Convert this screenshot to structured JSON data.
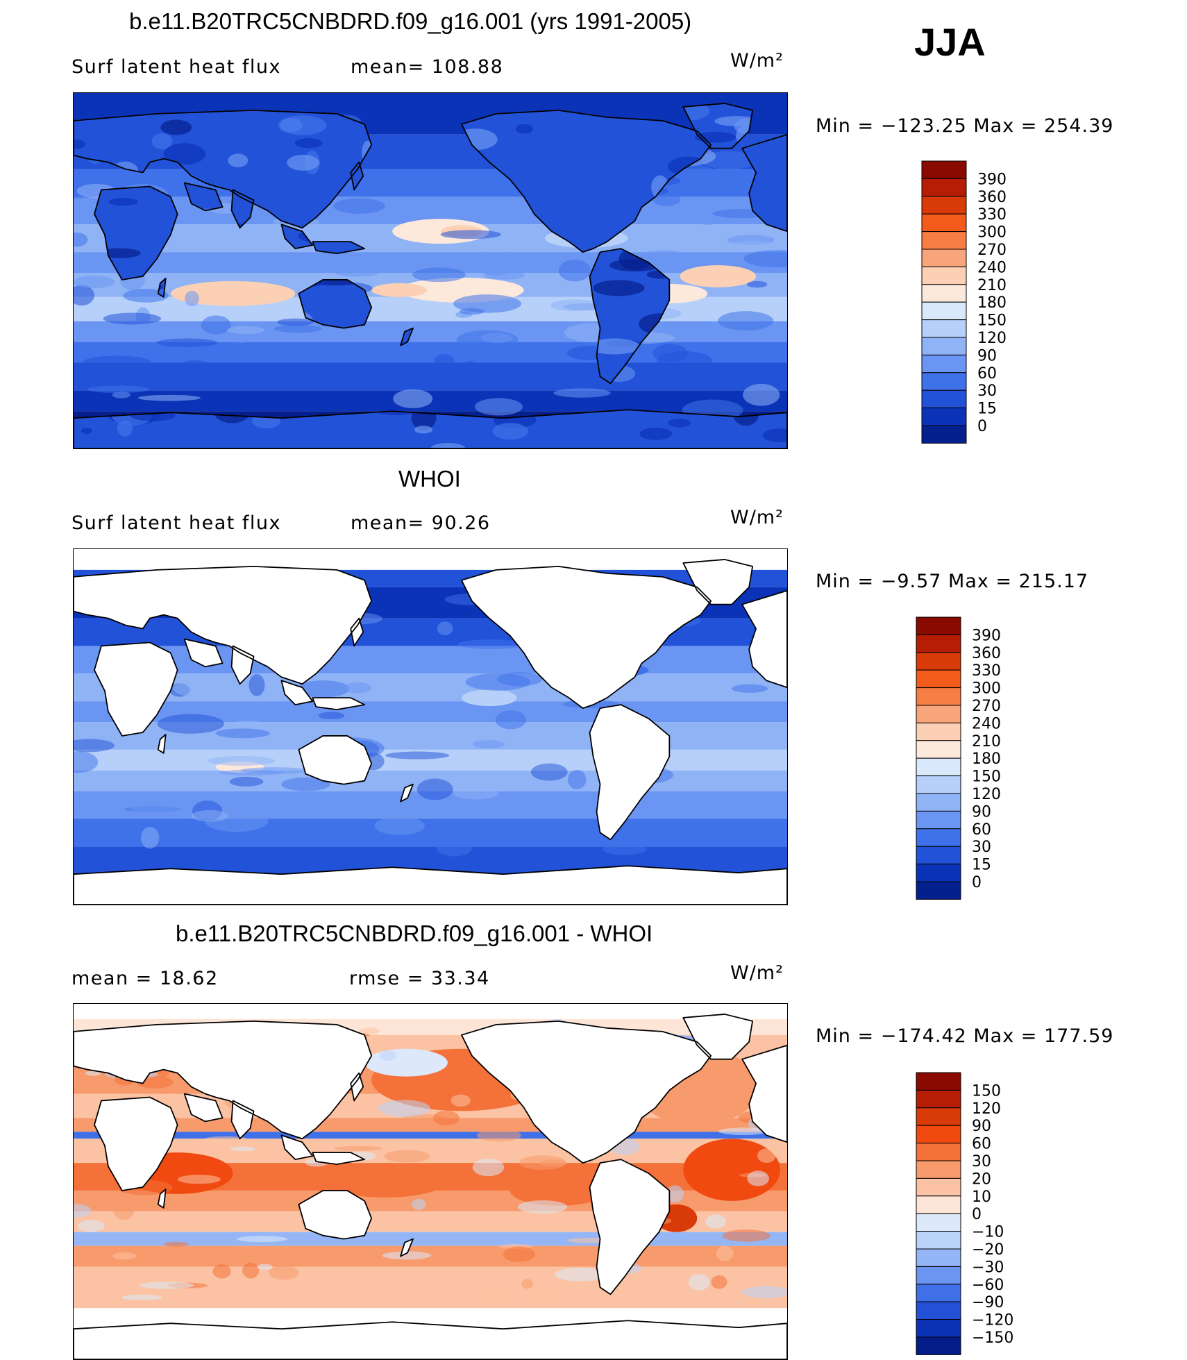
{
  "season": "JJA",
  "panels": [
    {
      "title": "b.e11.B20TRC5CNBDRD.f09_g16.001 (yrs 1991-2005)",
      "left_label": "Surf latent heat flux",
      "mean_label": "mean=  108.88",
      "units": "W/m²",
      "minmax": "Min  =  −123.25  Max  =  254.39",
      "colorbar": {
        "labels": [
          "390",
          "360",
          "330",
          "300",
          "270",
          "240",
          "210",
          "180",
          "150",
          "120",
          "90",
          "60",
          "30",
          "15",
          "0"
        ],
        "colors": [
          "#8a0a00",
          "#b51d04",
          "#d93b08",
          "#f35b1b",
          "#f67d44",
          "#f9a57c",
          "#fbd0b5",
          "#fde9dc",
          "#d9e8fb",
          "#b7d0f9",
          "#90b3f6",
          "#6a95f2",
          "#3f72ea",
          "#2252d8",
          "#0b33b8",
          "#051f8f"
        ]
      },
      "map_style": "model"
    },
    {
      "title": "WHOI",
      "left_label": "Surf latent heat flux",
      "mean_label": "mean=   90.26",
      "units": "W/m²",
      "minmax": "Min  =    −9.57  Max  =  215.17",
      "colorbar": {
        "labels": [
          "390",
          "360",
          "330",
          "300",
          "270",
          "240",
          "210",
          "180",
          "150",
          "120",
          "90",
          "60",
          "30",
          "15",
          "0"
        ],
        "colors": [
          "#8a0a00",
          "#b51d04",
          "#d93b08",
          "#f35b1b",
          "#f67d44",
          "#f9a57c",
          "#fbd0b5",
          "#fde9dc",
          "#d9e8fb",
          "#b7d0f9",
          "#90b3f6",
          "#6a95f2",
          "#3f72ea",
          "#2252d8",
          "#0b33b8",
          "#051f8f"
        ]
      },
      "map_style": "obs"
    },
    {
      "title": "b.e11.B20TRC5CNBDRD.f09_g16.001 - WHOI",
      "left_label": "mean  =    18.62",
      "mean_label": "rmse  =    33.34",
      "units": "W/m²",
      "minmax": "Min  =  −174.42  Max  =  177.59",
      "colorbar": {
        "labels": [
          "150",
          "120",
          "90",
          "60",
          "30",
          "20",
          "10",
          "0",
          "−10",
          "−20",
          "−30",
          "−60",
          "−90",
          "−120",
          "−150"
        ],
        "colors": [
          "#8a0a00",
          "#b51d04",
          "#d93b08",
          "#f04a10",
          "#f4723a",
          "#f79a6c",
          "#fbc3a3",
          "#fde6d8",
          "#dde9fb",
          "#bcd3f9",
          "#94b6f6",
          "#6b95f1",
          "#3f70e8",
          "#2250d6",
          "#0b31b4",
          "#041c88"
        ]
      },
      "map_style": "diff"
    }
  ]
}
